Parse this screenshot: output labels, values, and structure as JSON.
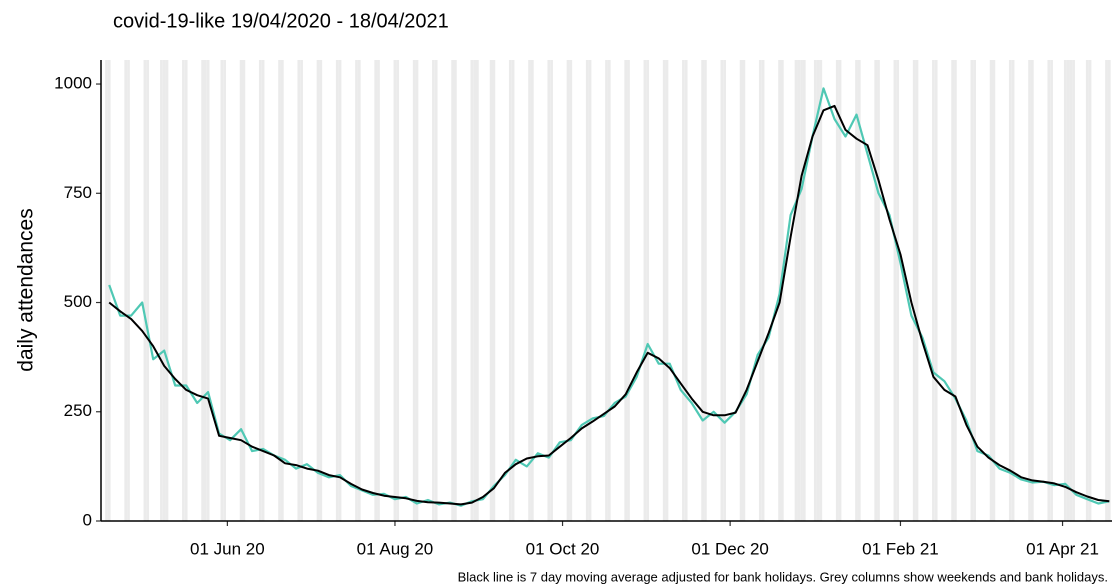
{
  "chart_data": {
    "type": "line",
    "title": "covid-19-like 19/04/2020 - 18/04/2021",
    "y_label": "daily attendances",
    "caption": "Black line is 7 day moving average adjusted for bank holidays. Grey columns show weekends and bank holidays.",
    "x": [
      "2020-04-19",
      "2020-04-23",
      "2020-04-27",
      "2020-05-01",
      "2020-05-05",
      "2020-05-09",
      "2020-05-13",
      "2020-05-17",
      "2020-05-21",
      "2020-05-25",
      "2020-05-29",
      "2020-06-02",
      "2020-06-06",
      "2020-06-10",
      "2020-06-14",
      "2020-06-18",
      "2020-06-22",
      "2020-06-26",
      "2020-06-30",
      "2020-07-04",
      "2020-07-08",
      "2020-07-12",
      "2020-07-16",
      "2020-07-20",
      "2020-07-24",
      "2020-07-28",
      "2020-08-01",
      "2020-08-05",
      "2020-08-09",
      "2020-08-13",
      "2020-08-17",
      "2020-08-21",
      "2020-08-25",
      "2020-08-29",
      "2020-09-02",
      "2020-09-06",
      "2020-09-10",
      "2020-09-14",
      "2020-09-18",
      "2020-09-22",
      "2020-09-26",
      "2020-09-30",
      "2020-10-04",
      "2020-10-08",
      "2020-10-12",
      "2020-10-16",
      "2020-10-20",
      "2020-10-24",
      "2020-10-28",
      "2020-11-01",
      "2020-11-05",
      "2020-11-09",
      "2020-11-13",
      "2020-11-17",
      "2020-11-21",
      "2020-11-25",
      "2020-11-29",
      "2020-12-03",
      "2020-12-07",
      "2020-12-11",
      "2020-12-15",
      "2020-12-19",
      "2020-12-23",
      "2020-12-27",
      "2020-12-31",
      "2021-01-04",
      "2021-01-08",
      "2021-01-12",
      "2021-01-16",
      "2021-01-20",
      "2021-01-24",
      "2021-01-28",
      "2021-02-01",
      "2021-02-05",
      "2021-02-09",
      "2021-02-13",
      "2021-02-17",
      "2021-02-21",
      "2021-02-25",
      "2021-03-01",
      "2021-03-05",
      "2021-03-09",
      "2021-03-13",
      "2021-03-17",
      "2021-03-21",
      "2021-03-25",
      "2021-03-29",
      "2021-04-02",
      "2021-04-06",
      "2021-04-10",
      "2021-04-14",
      "2021-04-18"
    ],
    "series": [
      {
        "color": "#4fc8b4",
        "values": [
          540,
          470,
          470,
          500,
          370,
          390,
          310,
          310,
          270,
          295,
          200,
          185,
          210,
          160,
          165,
          150,
          140,
          120,
          130,
          110,
          100,
          105,
          80,
          70,
          60,
          62,
          50,
          55,
          40,
          48,
          38,
          42,
          35,
          45,
          50,
          80,
          105,
          140,
          125,
          155,
          145,
          180,
          185,
          220,
          235,
          240,
          270,
          285,
          330,
          405,
          360,
          360,
          300,
          270,
          230,
          250,
          225,
          250,
          290,
          380,
          420,
          520,
          700,
          760,
          880,
          990,
          920,
          880,
          930,
          840,
          750,
          700,
          590,
          470,
          420,
          340,
          320,
          280,
          230,
          160,
          150,
          120,
          110,
          95,
          88,
          90,
          82,
          85,
          60,
          50,
          40,
          45
        ]
      },
      {
        "color": "#000000",
        "values": [
          500,
          480,
          462,
          435,
          400,
          355,
          325,
          300,
          288,
          280,
          195,
          190,
          185,
          170,
          160,
          150,
          132,
          128,
          120,
          115,
          105,
          100,
          85,
          72,
          64,
          58,
          55,
          52,
          46,
          43,
          42,
          40,
          38,
          42,
          55,
          75,
          110,
          130,
          143,
          148,
          150,
          170,
          190,
          212,
          228,
          245,
          262,
          290,
          340,
          385,
          372,
          350,
          315,
          280,
          250,
          242,
          242,
          248,
          300,
          365,
          430,
          500,
          650,
          790,
          880,
          940,
          950,
          895,
          875,
          860,
          780,
          690,
          610,
          500,
          410,
          330,
          300,
          285,
          220,
          170,
          145,
          128,
          115,
          100,
          93,
          90,
          86,
          78,
          66,
          56,
          48,
          45
        ]
      }
    ],
    "xlim": [
      "2020-04-16",
      "2021-04-19"
    ],
    "xticks": [
      {
        "value": "2020-06-01",
        "label": "01 Jun 20"
      },
      {
        "value": "2020-08-01",
        "label": "01 Aug 20"
      },
      {
        "value": "2020-10-01",
        "label": "01 Oct 20"
      },
      {
        "value": "2020-12-01",
        "label": "01 Dec 20"
      },
      {
        "value": "2021-02-01",
        "label": "01 Feb 21"
      },
      {
        "value": "2021-04-01",
        "label": "01 Apr 21"
      }
    ],
    "ylim": [
      0,
      1055
    ],
    "yticks": [
      0,
      250,
      500,
      750,
      1000
    ],
    "bank_holidays": [
      "2020-05-08",
      "2020-05-25",
      "2020-08-31",
      "2020-12-25",
      "2020-12-28",
      "2021-01-01",
      "2021-04-02",
      "2021-04-05"
    ],
    "shade_weekends": true,
    "shade_color": "#ebebeb"
  }
}
